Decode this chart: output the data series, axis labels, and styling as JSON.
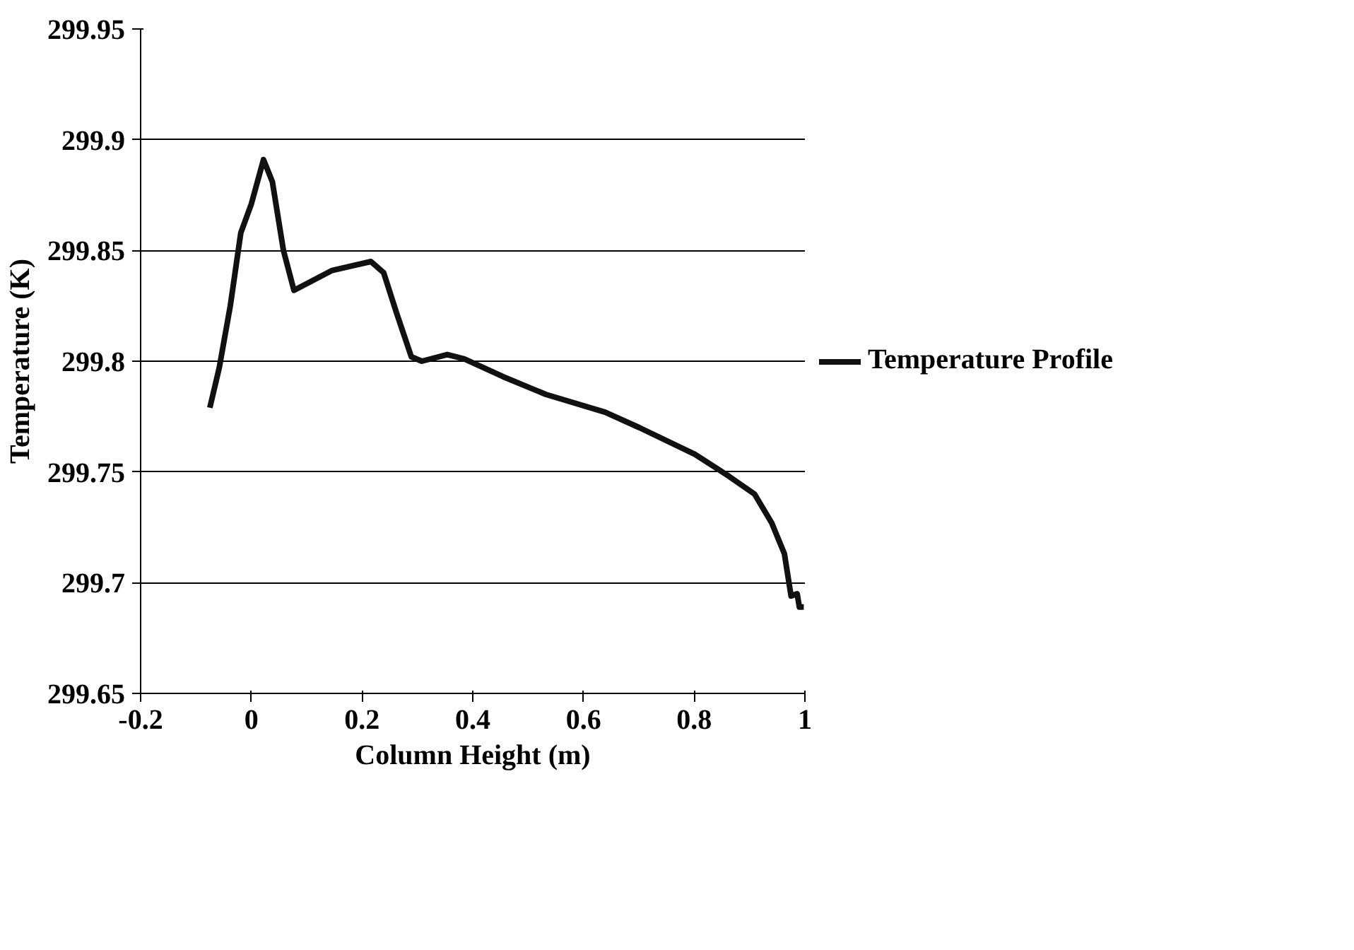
{
  "chart_data": {
    "type": "line",
    "xlabel": "Column Height (m)",
    "ylabel": "Temperature (K)",
    "xlim": [
      -0.2,
      1
    ],
    "xticks": [
      -0.2,
      0,
      0.2,
      0.4,
      0.6,
      0.8,
      1
    ],
    "ylim": [
      299.65,
      299.95
    ],
    "yticks": [
      299.65,
      299.7,
      299.75,
      299.8,
      299.85,
      299.9,
      299.95
    ],
    "grid": "y",
    "legend": "right",
    "marker": "none",
    "line_style": "solid",
    "series": [
      {
        "name": "Temperature Profile",
        "color": "#111111",
        "x": [
          -0.075,
          -0.058,
          -0.038,
          -0.019,
          0,
          0.022,
          0.038,
          0.058,
          0.077,
          0.146,
          0.216,
          0.239,
          0.262,
          0.289,
          0.308,
          0.354,
          0.385,
          0.455,
          0.532,
          0.639,
          0.701,
          0.801,
          0.863,
          0.909,
          0.94,
          0.963,
          0.975,
          0.986,
          0.99,
          0.998
        ],
        "values": [
          299.779,
          299.797,
          299.825,
          299.858,
          299.871,
          299.891,
          299.881,
          299.85,
          299.832,
          299.841,
          299.845,
          299.84,
          299.822,
          299.802,
          299.8,
          299.803,
          299.801,
          299.793,
          299.785,
          299.777,
          299.77,
          299.758,
          299.748,
          299.74,
          299.727,
          299.713,
          299.694,
          299.695,
          299.689,
          299.689
        ]
      }
    ]
  }
}
